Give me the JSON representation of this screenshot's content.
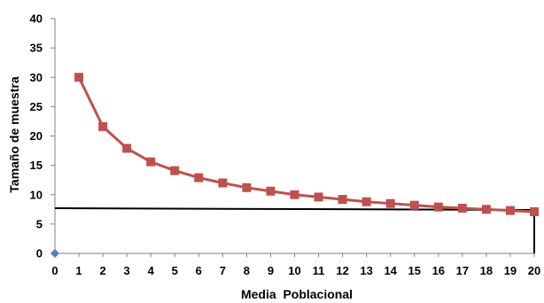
{
  "chart_data": {
    "type": "line",
    "xlabel": "Media  Poblacional",
    "ylabel": "Tamaño de muestra",
    "xlim": [
      0,
      20
    ],
    "ylim": [
      0,
      40
    ],
    "x_ticks": [
      0,
      1,
      2,
      3,
      4,
      5,
      6,
      7,
      8,
      9,
      10,
      11,
      12,
      13,
      14,
      15,
      16,
      17,
      18,
      19,
      20
    ],
    "y_ticks": [
      0,
      5,
      10,
      15,
      20,
      25,
      30,
      35,
      40
    ],
    "grid": false,
    "legend": "none",
    "series": [
      {
        "x": [
          1,
          2,
          3,
          4,
          5,
          6,
          7,
          8,
          9,
          10,
          11,
          12,
          13,
          14,
          15,
          16,
          17,
          18,
          19,
          20
        ],
        "y": [
          30.0,
          21.6,
          17.9,
          15.6,
          14.1,
          12.9,
          12.0,
          11.2,
          10.6,
          10.0,
          9.6,
          9.2,
          8.8,
          8.5,
          8.2,
          7.9,
          7.7,
          7.5,
          7.3,
          7.1
        ],
        "color": "#c0504d",
        "marker": "square"
      },
      {
        "x": [
          0
        ],
        "y": [
          0
        ],
        "color": "#4f81bd",
        "marker": "diamond"
      }
    ],
    "reference_line": {
      "y_start": 7.7,
      "y_end": 7.4,
      "x_start": 0,
      "x_end": 20,
      "vertical_drop_x": 20,
      "color": "#000000"
    }
  }
}
